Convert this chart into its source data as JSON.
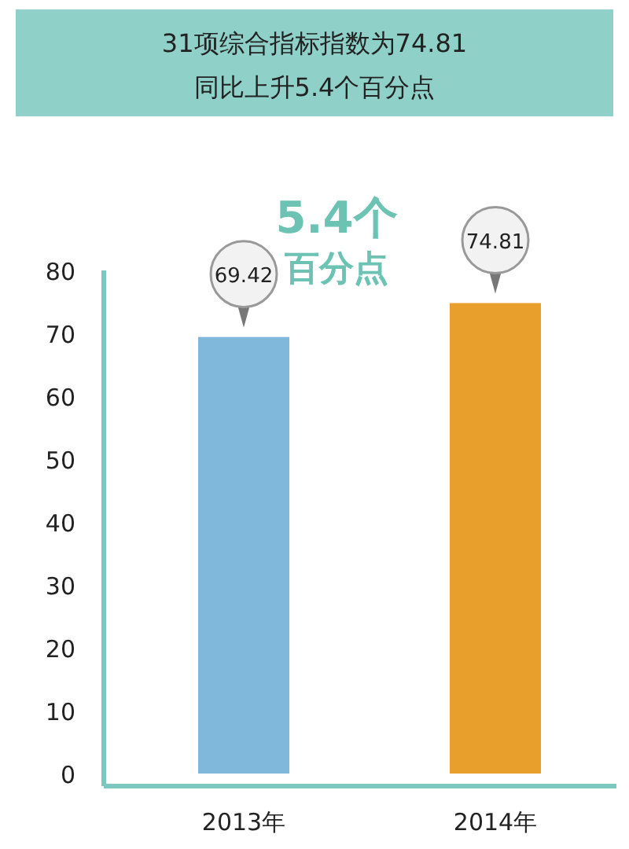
{
  "chart_data": {
    "type": "bar",
    "title": "31项综合指标指数为74.81",
    "subtitle": "同比上升5.4个百分点",
    "categories": [
      "2013年",
      "2014年"
    ],
    "values": [
      69.42,
      74.81
    ],
    "colors": [
      "#7fb8da",
      "#e89f2c"
    ],
    "ylim": [
      0,
      80
    ],
    "yticks": [
      0,
      10,
      20,
      30,
      40,
      50,
      60,
      70,
      80
    ],
    "data_labels": true,
    "annotations": [
      "5.4个",
      "百分点"
    ]
  }
}
